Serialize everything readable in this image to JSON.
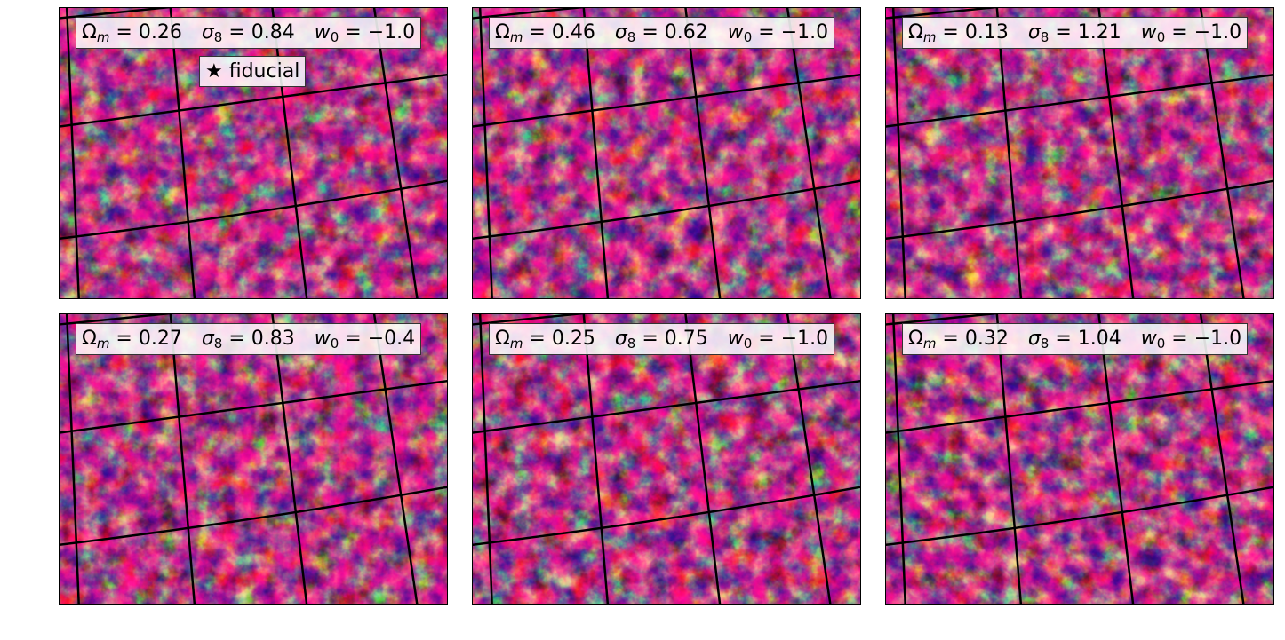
{
  "panels": [
    {
      "omega_m": "0.26",
      "sigma_8": "0.84",
      "w_0": "−1.0"
    },
    {
      "omega_m": "0.46",
      "sigma_8": "0.62",
      "w_0": "−1.0"
    },
    {
      "omega_m": "0.13",
      "sigma_8": "1.21",
      "w_0": "−1.0"
    },
    {
      "omega_m": "0.27",
      "sigma_8": "0.83",
      "w_0": "−0.4"
    },
    {
      "omega_m": "0.25",
      "sigma_8": "0.75",
      "w_0": "−1.0"
    },
    {
      "omega_m": "0.32",
      "sigma_8": "1.04",
      "w_0": "−1.0"
    }
  ],
  "symbols": {
    "omega": "Ω",
    "omega_sub": "m",
    "sigma": "σ",
    "sigma_sub": "8",
    "w": "w",
    "w_sub": "0",
    "eq": " = "
  },
  "fiducial": {
    "star": "★",
    "text": "fiducial"
  },
  "colors": {
    "void": "#1a0a70",
    "filament_mid": "#c03a8a",
    "filament_high": "#ffd23a",
    "grid": "#000000"
  }
}
